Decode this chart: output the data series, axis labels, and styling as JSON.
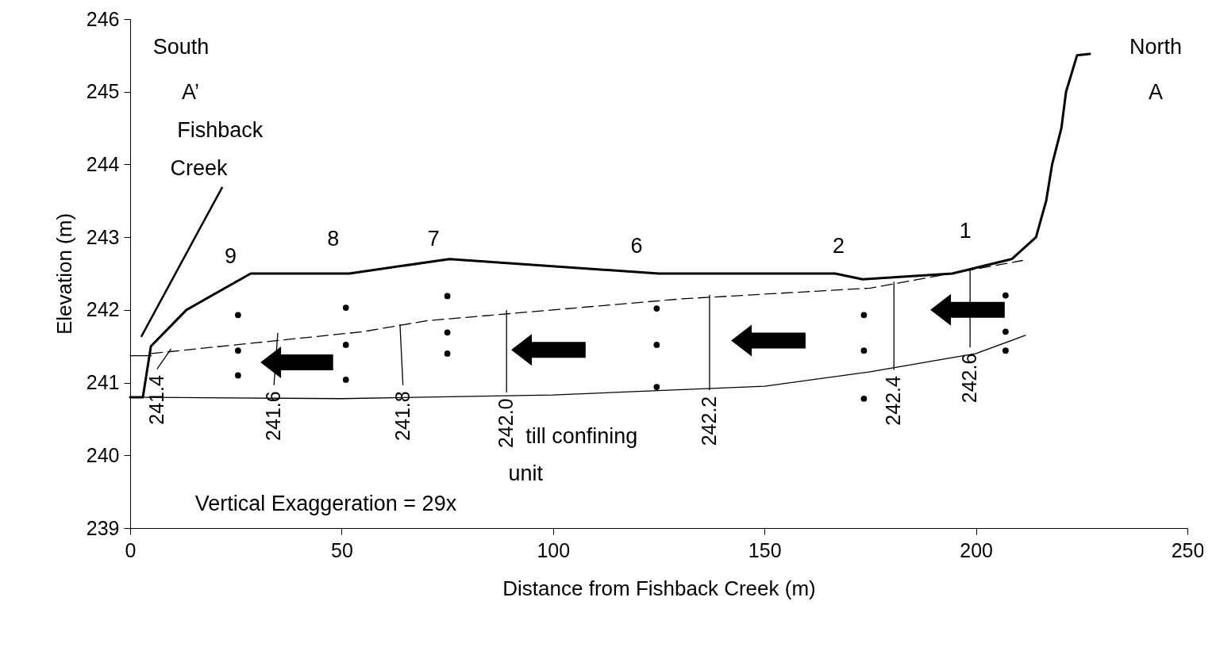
{
  "chart_data": {
    "type": "line",
    "xlabel": "Distance from Fishback Creek (m)",
    "ylabel": "Elevation (m)",
    "xlim": [
      0,
      250
    ],
    "xticks": [
      0,
      50,
      100,
      150,
      200,
      250
    ],
    "ylim": [
      239,
      246
    ],
    "yticks": [
      239,
      240,
      241,
      242,
      243,
      244,
      245,
      246
    ],
    "grid": false,
    "marker": "none",
    "series": [
      {
        "color": "#000000",
        "line_style": "solid",
        "x": [
          0,
          3,
          4.9,
          13.3,
          28.5,
          51.8,
          75.5,
          125,
          166.7,
          173.2,
          194.4,
          208.5,
          214.2,
          216.6,
          218,
          220.2,
          221.3,
          223.9,
          226.9
        ],
        "values": [
          240.8,
          240.8,
          241.5,
          242.0,
          242.5,
          242.5,
          242.7,
          242.5,
          242.5,
          242.42,
          242.5,
          242.7,
          243.0,
          243.5,
          244.0,
          244.5,
          245.0,
          245.5,
          245.52
        ]
      },
      {
        "color": "#000000",
        "line_style": "dashed",
        "x": [
          5,
          30,
          55,
          70,
          100,
          130,
          175,
          211
        ],
        "values": [
          241.4,
          241.55,
          241.7,
          241.85,
          242.0,
          242.15,
          242.3,
          242.68
        ]
      },
      {
        "color": "#000000",
        "line_style": "solid",
        "x": [
          0,
          5
        ],
        "values": [
          241.37,
          241.37
        ]
      },
      {
        "color": "#000000",
        "line_style": "solid",
        "x": [
          0,
          50,
          100,
          150,
          175,
          200,
          211.7
        ],
        "values": [
          240.8,
          240.78,
          240.83,
          240.95,
          241.15,
          241.4,
          241.65
        ]
      },
      {
        "name": "241.4",
        "color": "#000000",
        "line_style": "solid",
        "x": [
          6.4,
          9.6
        ],
        "values": [
          241.19,
          241.46
        ]
      },
      {
        "name": "241.6",
        "color": "#000000",
        "line_style": "solid",
        "x": [
          34,
          34.9
        ],
        "values": [
          240.97,
          241.68
        ]
      },
      {
        "name": "241.8",
        "color": "#000000",
        "line_style": "solid",
        "x": [
          64.5,
          63.8
        ],
        "values": [
          240.97,
          241.8
        ]
      },
      {
        "name": "242.0",
        "color": "#000000",
        "line_style": "solid",
        "x": [
          89,
          89
        ],
        "values": [
          240.87,
          241.99
        ]
      },
      {
        "name": "242.2",
        "color": "#000000",
        "line_style": "solid",
        "x": [
          137,
          137
        ],
        "values": [
          240.9,
          242.2
        ]
      },
      {
        "name": "242.4",
        "color": "#000000",
        "line_style": "solid",
        "x": [
          180.6,
          180.6
        ],
        "values": [
          241.18,
          242.38
        ]
      },
      {
        "name": "242.6",
        "color": "#000000",
        "line_style": "solid",
        "x": [
          198.6,
          198.6
        ],
        "values": [
          241.49,
          242.55
        ]
      },
      {
        "type": "scatter",
        "color": "#000000",
        "marker": "circle",
        "x": [
          25.5,
          25.5,
          25.5,
          51,
          51,
          51,
          75,
          75,
          75,
          124.5,
          124.5,
          124.5,
          173.5,
          173.5,
          173.5,
          207,
          207,
          207
        ],
        "values": [
          241.93,
          241.44,
          241.1,
          242.03,
          241.52,
          241.04,
          242.19,
          241.69,
          241.4,
          242.02,
          241.52,
          240.94,
          241.93,
          241.44,
          240.78,
          242.2,
          241.7,
          241.44
        ]
      }
    ],
    "annotations": [
      "South",
      "A’",
      "Fishback",
      "Creek",
      "North",
      "A",
      "till confining",
      "unit",
      "Vertical Exaggeration = 29x",
      "9",
      "8",
      "7",
      "6",
      "2",
      "1"
    ]
  }
}
